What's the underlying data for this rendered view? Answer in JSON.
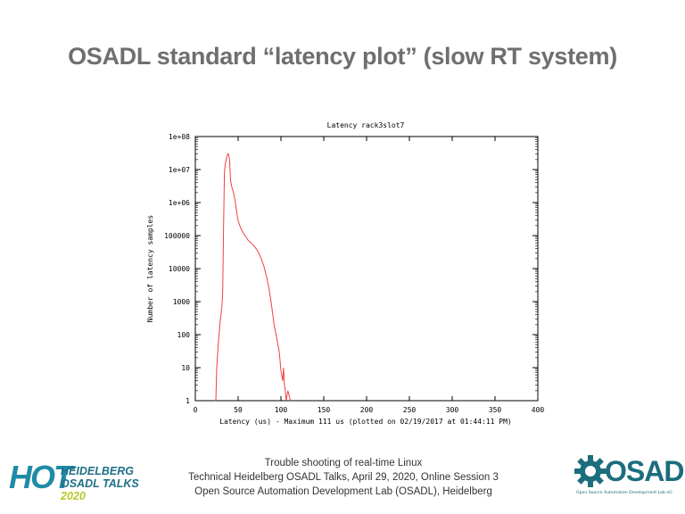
{
  "slide": {
    "title": "OSADL standard “latency plot” (slow RT system)"
  },
  "footer": {
    "line1": "Trouble shooting of real-time Linux",
    "line2": "Technical Heidelberg OSADL Talks, April 29, 2020, Online Session 3",
    "line3": "Open Source Automation Development Lab (OSADL), Heidelberg"
  },
  "logos": {
    "hot_letters": "HOT",
    "hot_line1": "HEIDELBERG",
    "hot_line2": "OSADL TALKS",
    "hot_year": "2020",
    "osadl_word": "OSADL",
    "osadl_sub": "Open Source Automation Development Lab eG"
  },
  "colors": {
    "title": "#6f6f6f",
    "series": "#f04040",
    "hot_blue": "#1f8ba6",
    "hot_green": "#b6c62a",
    "osadl_teal": "#1c6d7d"
  },
  "chart_data": {
    "type": "line",
    "title": "Latency rack3slot7",
    "xlabel": "Latency (us) - Maximum 111 us (plotted on 02/19/2017 at 01:44:11 PM)",
    "ylabel": "Number of latency samples",
    "xlim": [
      0,
      400
    ],
    "ylim": [
      1,
      100000000
    ],
    "yscale": "log",
    "grid": false,
    "x_ticks": [
      "0",
      "50",
      "100",
      "150",
      "200",
      "250",
      "300",
      "350",
      "400"
    ],
    "y_ticks": [
      "1",
      "10",
      "100",
      "1000",
      "10000",
      "100000",
      "1e+06",
      "1e+07",
      "1e+08"
    ],
    "series": [
      {
        "points": [
          [
            24,
            1
          ],
          [
            25,
            10
          ],
          [
            27,
            60
          ],
          [
            29,
            250
          ],
          [
            31,
            700
          ],
          [
            32,
            2000
          ],
          [
            33,
            200000
          ],
          [
            34,
            8000000
          ],
          [
            35,
            15000000
          ],
          [
            36,
            20000000
          ],
          [
            37,
            25000000
          ],
          [
            38,
            30000000
          ],
          [
            39,
            28000000
          ],
          [
            40,
            20000000
          ],
          [
            41,
            5000000
          ],
          [
            42,
            3500000
          ],
          [
            43,
            2700000
          ],
          [
            44,
            2300000
          ],
          [
            45,
            1800000
          ],
          [
            46,
            1300000
          ],
          [
            47,
            900000
          ],
          [
            48,
            600000
          ],
          [
            49,
            400000
          ],
          [
            50,
            280000
          ],
          [
            52,
            200000
          ],
          [
            54,
            150000
          ],
          [
            56,
            120000
          ],
          [
            58,
            100000
          ],
          [
            60,
            85000
          ],
          [
            62,
            70000
          ],
          [
            65,
            60000
          ],
          [
            68,
            50000
          ],
          [
            71,
            40000
          ],
          [
            74,
            30000
          ],
          [
            77,
            20000
          ],
          [
            80,
            12000
          ],
          [
            83,
            6000
          ],
          [
            86,
            2500
          ],
          [
            89,
            800
          ],
          [
            92,
            200
          ],
          [
            95,
            80
          ],
          [
            98,
            30
          ],
          [
            100,
            8
          ],
          [
            102,
            4
          ],
          [
            103,
            10
          ],
          [
            104,
            3
          ],
          [
            105,
            2
          ],
          [
            106,
            1
          ],
          [
            108,
            2
          ],
          [
            111,
            1
          ]
        ]
      }
    ]
  }
}
